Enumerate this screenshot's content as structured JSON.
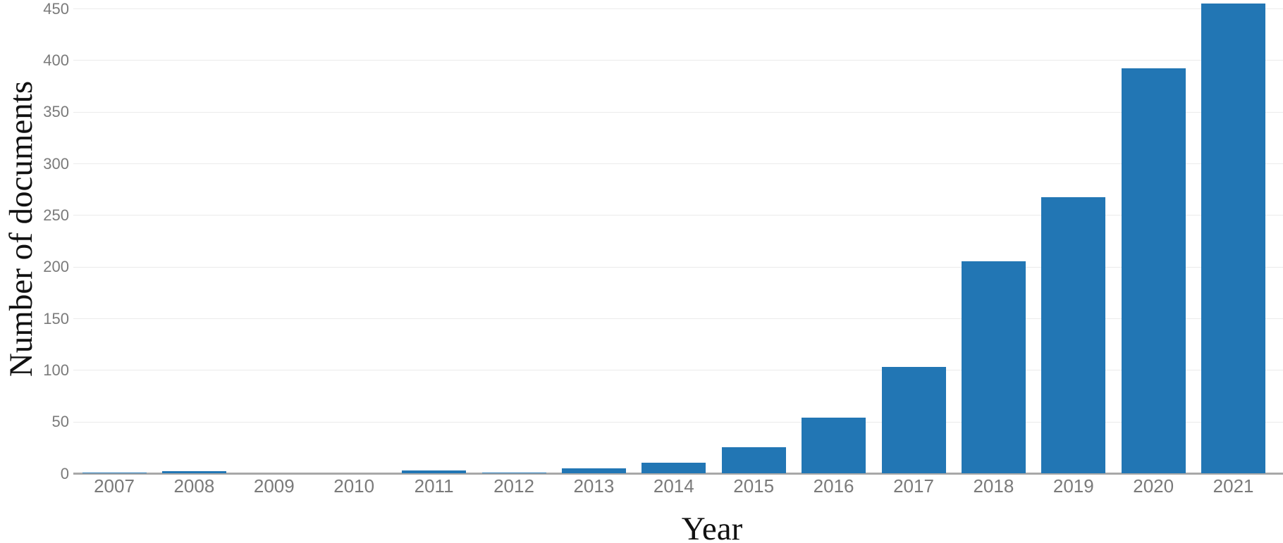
{
  "chart_data": {
    "type": "bar",
    "title": "",
    "xlabel": "Year",
    "ylabel": "Number of documents",
    "categories": [
      "2007",
      "2008",
      "2009",
      "2010",
      "2011",
      "2012",
      "2013",
      "2014",
      "2015",
      "2016",
      "2017",
      "2018",
      "2019",
      "2020",
      "2021"
    ],
    "values": [
      1,
      2,
      0,
      0,
      3,
      1,
      5,
      10,
      25,
      54,
      103,
      205,
      267,
      392,
      455
    ],
    "yticks": [
      0,
      50,
      100,
      150,
      200,
      250,
      300,
      350,
      400,
      450
    ],
    "ylim": [
      0,
      460
    ],
    "grid": "horizontal",
    "legend": false,
    "colors": {
      "bar": "#2276b4",
      "gridline": "#ebebeb",
      "axis_line": "#a8a8a8",
      "tick_text": "#7a7a7a",
      "title_text": "#111111"
    }
  }
}
